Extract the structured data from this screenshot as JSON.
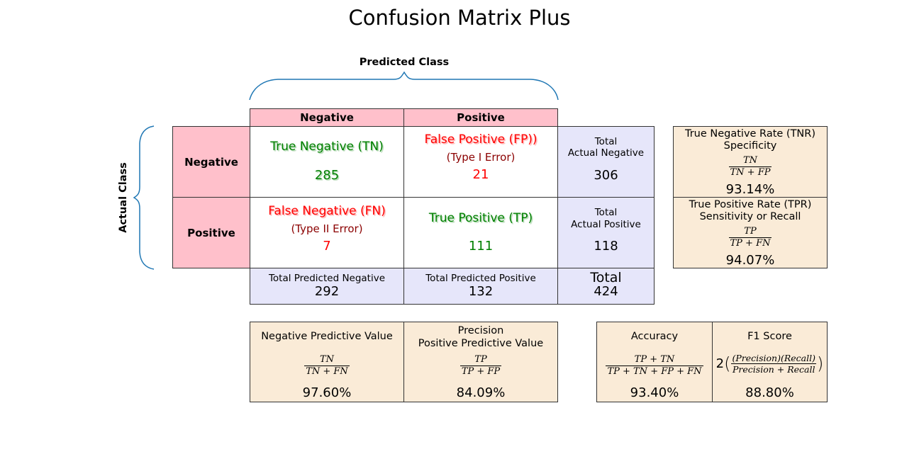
{
  "title": "Confusion Matrix Plus",
  "predicted_class_label": "Predicted Class",
  "actual_class_label": "Actual Class",
  "column_headers": {
    "negative": "Negative",
    "positive": "Positive"
  },
  "row_headers": {
    "negative": "Negative",
    "positive": "Positive"
  },
  "matrix": {
    "tn": {
      "label": "True Negative (TN)",
      "value": "285"
    },
    "fp": {
      "label": "False Positive (FP))",
      "sublabel": "(Type I Error)",
      "value": "21"
    },
    "fn": {
      "label": "False Negative (FN)",
      "sublabel": "(Type II Error)",
      "value": "7"
    },
    "tp": {
      "label": "True Positive (TP)",
      "value": "111"
    }
  },
  "row_totals": {
    "negative": {
      "line1": "Total",
      "line2": "Actual Negative",
      "value": "306"
    },
    "positive": {
      "line1": "Total",
      "line2": "Actual Positive",
      "value": "118"
    }
  },
  "column_totals": {
    "negative": {
      "label": "Total Predicted Negative",
      "value": "292"
    },
    "positive": {
      "label": "Total Predicted Positive",
      "value": "132"
    }
  },
  "grand_total": {
    "label": "Total",
    "value": "424"
  },
  "rates": {
    "tnr": {
      "line1": "True Negative Rate (TNR)",
      "line2": "Specificity",
      "num": "TN",
      "den": "TN + FP",
      "value": "93.14%"
    },
    "tpr": {
      "line1": "True Positive Rate (TPR)",
      "line2": "Sensitivity or Recall",
      "num": "TP",
      "den": "TP + FN",
      "value": "94.07%"
    }
  },
  "metrics": {
    "npv": {
      "line1": "Negative Predictive Value",
      "num": "TN",
      "den": "TN + FN",
      "value": "97.60%"
    },
    "precision": {
      "line1": "Precision",
      "line2": "Positive Predictive Value",
      "num": "TP",
      "den": "TP + FP",
      "value": "84.09%"
    },
    "accuracy": {
      "line1": "Accuracy",
      "num": "TP + TN",
      "den": "TP + TN + FP + FN",
      "value": "93.40%"
    },
    "f1": {
      "line1": "F1 Score",
      "prefix": "2",
      "num": "(Precision)(Recall)",
      "den": "Precision + Recall",
      "value": "88.80%"
    }
  },
  "colors": {
    "header": "#ffc0cb",
    "totals": "#e6e6fa",
    "metrics": "#faebd7",
    "correct": "#008000",
    "error": "#ff0000",
    "error_type": "#8b0000",
    "brace": "#1f77b4"
  }
}
